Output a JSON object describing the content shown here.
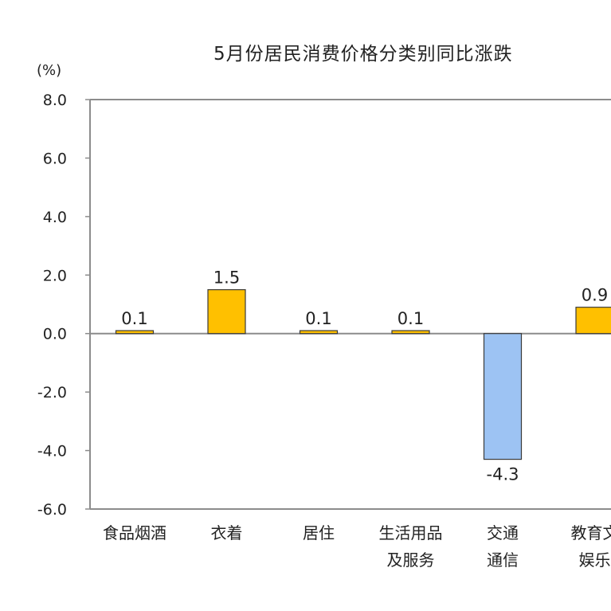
{
  "chart_data": {
    "type": "bar",
    "title": "5月份居民消费价格分类别同比涨跌",
    "unit": "(%)",
    "xlabel": "",
    "ylabel": "",
    "ylim": [
      -6.0,
      8.0
    ],
    "yticks": [
      "8.0",
      "6.0",
      "4.0",
      "2.0",
      "0.0",
      "-2.0",
      "-4.0",
      "-6.0"
    ],
    "grid": false,
    "legend": "none",
    "categories": [
      [
        "食品烟酒"
      ],
      [
        "衣着"
      ],
      [
        "居住"
      ],
      [
        "生活用品",
        "及服务"
      ],
      [
        "交通",
        "通信"
      ],
      [
        "教育文",
        "娱乐"
      ]
    ],
    "values": [
      0.1,
      1.5,
      0.1,
      0.1,
      -4.3,
      0.9
    ],
    "data_labels": [
      "0.1",
      "1.5",
      "0.1",
      "0.1",
      "-4.3",
      "0.9"
    ],
    "colors": {
      "positive": "#FFC000",
      "negative": "#9DC3F3",
      "bar_edge": "#3a3a3a",
      "axis": "#8c8c8c",
      "zero_line": "#8c8c8c"
    }
  }
}
